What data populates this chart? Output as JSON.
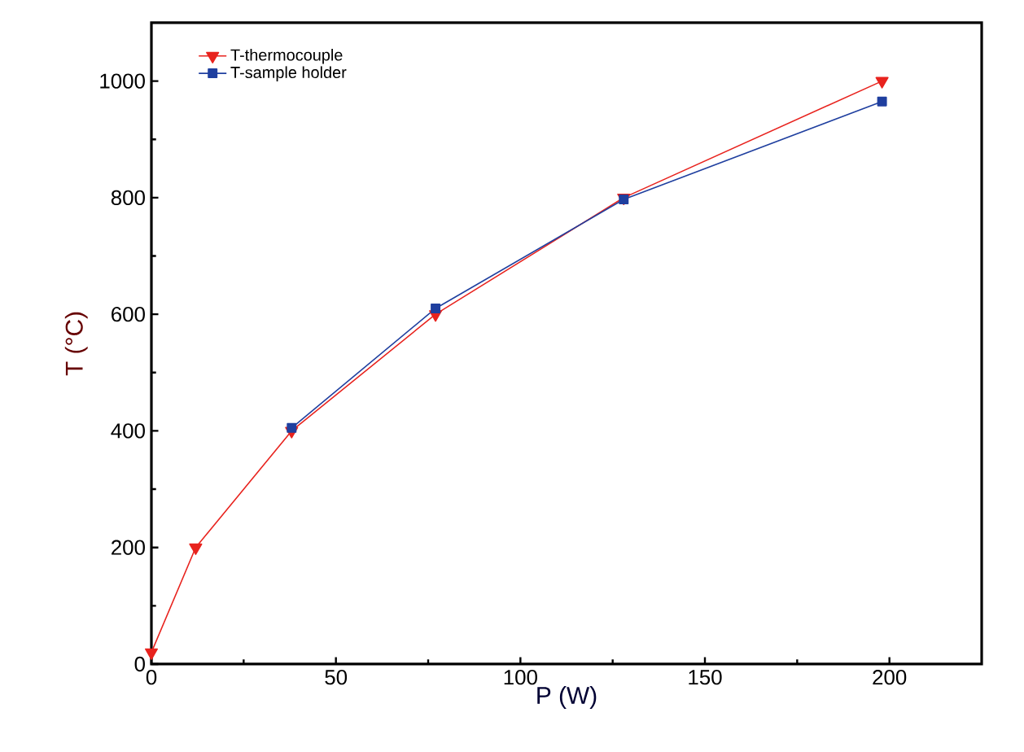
{
  "chart_data": {
    "type": "line",
    "xlabel": "P (W)",
    "ylabel": "T (°C)",
    "series": [
      {
        "name": "T-thermocouple",
        "color": "#e8231e",
        "marker": "triangle",
        "x": [
          0,
          12,
          38,
          77,
          128,
          198
        ],
        "values": [
          20,
          200,
          400,
          600,
          800,
          1000
        ]
      },
      {
        "name": "T-sample holder",
        "color": "#1f3f9f",
        "marker": "square",
        "x": [
          38,
          77,
          128,
          198
        ],
        "values": [
          405,
          610,
          797,
          965
        ]
      }
    ],
    "xlim": [
      0,
      225
    ],
    "ylim": [
      0,
      1100
    ],
    "xticks": [
      0,
      50,
      100,
      150,
      200
    ],
    "yticks": [
      0,
      200,
      400,
      600,
      800,
      1000
    ],
    "grid": false,
    "legend": "top left",
    "line_style": "solid"
  }
}
